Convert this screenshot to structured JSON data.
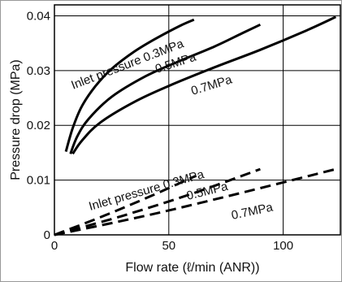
{
  "chart_data": {
    "type": "line",
    "xlabel": "Flow rate (ℓ/min (ANR))",
    "ylabel": "Pressure drop (MPa)",
    "xlim": [
      0,
      125
    ],
    "ylim": [
      0,
      0.042
    ],
    "x_ticks": [
      0,
      50,
      100
    ],
    "x_tick_labels": [
      "0",
      "50",
      "100"
    ],
    "y_ticks": [
      0,
      0.01,
      0.02,
      0.03,
      0.04
    ],
    "y_tick_labels": [
      "0",
      "0.01",
      "0.02",
      "0.03",
      "0.04"
    ],
    "grid": true,
    "legend": "none",
    "annotations": [
      "Inlet pressure 0.3MPa",
      "0.5MPa",
      "0.7MPa",
      "Inlet pressure 0.3MPa",
      "0.5MPa",
      "0.7MPa"
    ],
    "series": [
      {
        "style": "solid",
        "x": [
          5,
          8,
          12,
          18,
          25,
          35,
          45,
          55,
          61
        ],
        "y": [
          0.0152,
          0.0195,
          0.0235,
          0.0272,
          0.0303,
          0.0335,
          0.036,
          0.0382,
          0.0393
        ]
      },
      {
        "style": "solid",
        "x": [
          7,
          10,
          15,
          25,
          40,
          55,
          70,
          82,
          90
        ],
        "y": [
          0.0148,
          0.018,
          0.0212,
          0.0252,
          0.029,
          0.0318,
          0.0344,
          0.0368,
          0.0384
        ]
      },
      {
        "style": "solid",
        "x": [
          8,
          12,
          20,
          35,
          50,
          70,
          90,
          110,
          123
        ],
        "y": [
          0.0148,
          0.0172,
          0.0205,
          0.0243,
          0.0272,
          0.0306,
          0.0338,
          0.0373,
          0.0398
        ]
      },
      {
        "style": "dashed",
        "x": [
          0,
          20,
          40,
          62
        ],
        "y": [
          0,
          0.0032,
          0.0067,
          0.0108
        ]
      },
      {
        "style": "dashed",
        "x": [
          0,
          30,
          60,
          90
        ],
        "y": [
          0,
          0.0035,
          0.0075,
          0.012
        ]
      },
      {
        "style": "dashed",
        "x": [
          0,
          40,
          80,
          123
        ],
        "y": [
          0,
          0.0035,
          0.0075,
          0.012
        ]
      }
    ]
  }
}
